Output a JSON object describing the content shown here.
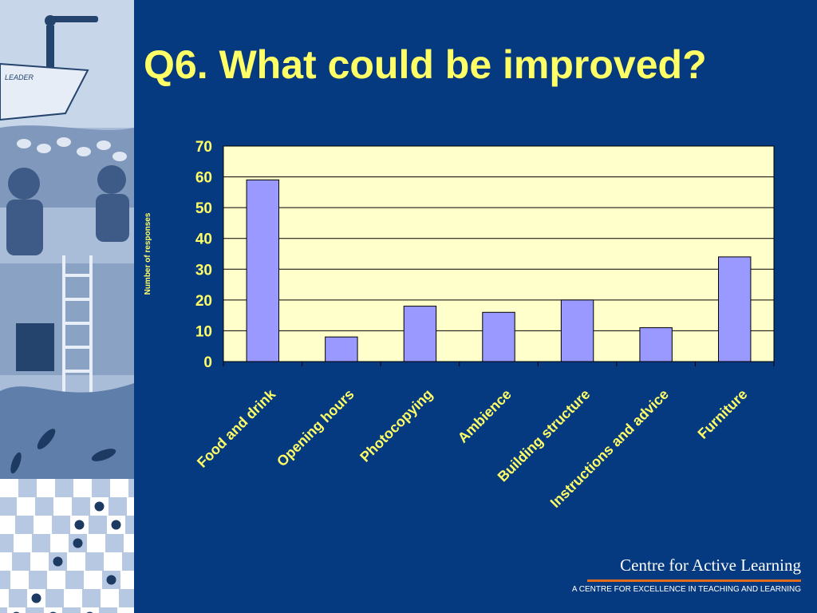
{
  "slide": {
    "title": "Q6. What could be improved?",
    "brand_name": "Centre for Active Learning",
    "brand_tagline": "A CENTRE FOR EXCELLENCE IN TEACHING AND LEARNING",
    "art_label": "LEADER"
  },
  "colors": {
    "background": "#063a80",
    "title": "#ffff66",
    "plot_background": "#ffffcc",
    "bar_fill": "#9999ff",
    "accent_rule": "#e36c1a"
  },
  "chart_data": {
    "type": "bar",
    "categories": [
      "Food and drink",
      "Opening hours",
      "Photocopying",
      "Ambience",
      "Building structure",
      "Instructions and advice",
      "Furniture"
    ],
    "values": [
      59,
      8,
      18,
      16,
      20,
      11,
      34
    ],
    "ylabel": "Number of responses",
    "ylim": [
      0,
      70
    ],
    "yticks": [
      "0",
      "10",
      "20",
      "30",
      "40",
      "50",
      "60",
      "70"
    ],
    "grid": true,
    "legend": "none"
  }
}
